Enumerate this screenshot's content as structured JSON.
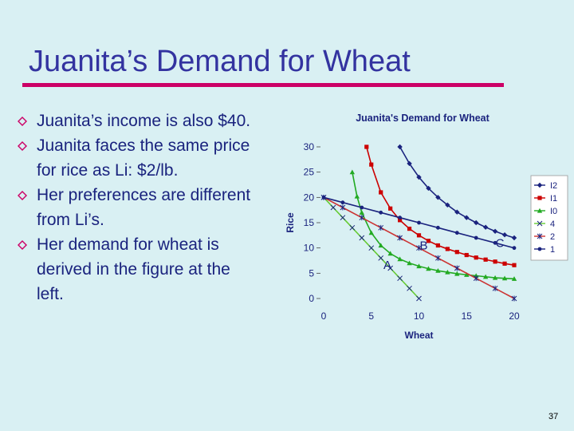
{
  "slide": {
    "title": "Juanita’s Demand for Wheat",
    "page_number": "37",
    "bullets": [
      "Juanita’s income is also $40.",
      "Juanita faces the same price for rice as Li: $2/lb.",
      "Her preferences are different from Li’s.",
      "Her demand for wheat is derived in the figure at the left."
    ],
    "colors": {
      "title": "#3333a0",
      "rule": "#cc0066",
      "bullet": "#cc0066",
      "text": "#1a237e",
      "background": "#d9f0f3"
    }
  },
  "chart_data": {
    "type": "line",
    "title": "Juanita's Demand for Wheat",
    "xlabel": "Wheat",
    "ylabel": "Rice",
    "xlim": [
      0,
      20
    ],
    "ylim": [
      0,
      30
    ],
    "xticks": [
      0,
      5,
      10,
      15,
      20
    ],
    "yticks": [
      0,
      5,
      10,
      15,
      20,
      25,
      30
    ],
    "legend_position": "right",
    "legend": [
      "I2",
      "I1",
      "I0",
      "4",
      "2",
      "1"
    ],
    "point_labels": [
      {
        "label": "A",
        "x": 6.7,
        "y": 6.6
      },
      {
        "label": "B",
        "x": 10.5,
        "y": 10.5
      },
      {
        "label": "C",
        "x": 18.5,
        "y": 11
      }
    ],
    "series": [
      {
        "name": "I2",
        "color": "#1a237e",
        "marker": "diamond",
        "x": [
          8,
          9,
          10,
          11,
          12,
          13,
          14,
          15,
          16,
          17,
          18,
          19,
          20
        ],
        "y": [
          30,
          26.7,
          24,
          21.8,
          20,
          18.5,
          17.1,
          16,
          15,
          14.1,
          13.3,
          12.6,
          12
        ]
      },
      {
        "name": "I1",
        "color": "#cc0000",
        "marker": "square",
        "x": [
          4.5,
          5,
          6,
          7,
          8,
          9,
          10,
          11,
          12,
          13,
          14,
          15,
          16,
          17,
          18,
          19,
          20
        ],
        "y": [
          30,
          26.5,
          21,
          17.8,
          15.5,
          13.8,
          12.5,
          11.4,
          10.5,
          9.8,
          9.2,
          8.6,
          8.1,
          7.7,
          7.3,
          6.9,
          6.6
        ]
      },
      {
        "name": "I0",
        "color": "#22aa22",
        "marker": "triangle",
        "x": [
          3,
          3.5,
          4,
          5,
          6,
          7,
          8,
          9,
          10,
          11,
          12,
          13,
          14,
          15,
          16,
          17,
          18,
          19,
          20
        ],
        "y": [
          25,
          20.2,
          17,
          13,
          10.5,
          8.9,
          7.8,
          7.0,
          6.4,
          5.9,
          5.5,
          5.2,
          4.9,
          4.7,
          4.5,
          4.3,
          4.1,
          4.0,
          3.9
        ]
      },
      {
        "name": "4",
        "color": "#66cc33",
        "marker": "x",
        "x": [
          0,
          1,
          2,
          3,
          4,
          5,
          6,
          7,
          8,
          9,
          10
        ],
        "y": [
          20,
          18,
          16,
          14,
          12,
          10,
          8,
          6,
          4,
          2,
          0
        ]
      },
      {
        "name": "2",
        "color": "#cc3333",
        "marker": "star",
        "x": [
          0,
          2,
          4,
          6,
          8,
          10,
          12,
          14,
          16,
          18,
          20
        ],
        "y": [
          20,
          18,
          16,
          14,
          12,
          10,
          8,
          6,
          4,
          2,
          0
        ]
      },
      {
        "name": "1",
        "color": "#1a237e",
        "marker": "circle",
        "x": [
          0,
          2,
          4,
          6,
          8,
          10,
          12,
          14,
          16,
          18,
          20
        ],
        "y": [
          20,
          19,
          18,
          17,
          16,
          15,
          14,
          13,
          12,
          11,
          10
        ]
      }
    ]
  }
}
